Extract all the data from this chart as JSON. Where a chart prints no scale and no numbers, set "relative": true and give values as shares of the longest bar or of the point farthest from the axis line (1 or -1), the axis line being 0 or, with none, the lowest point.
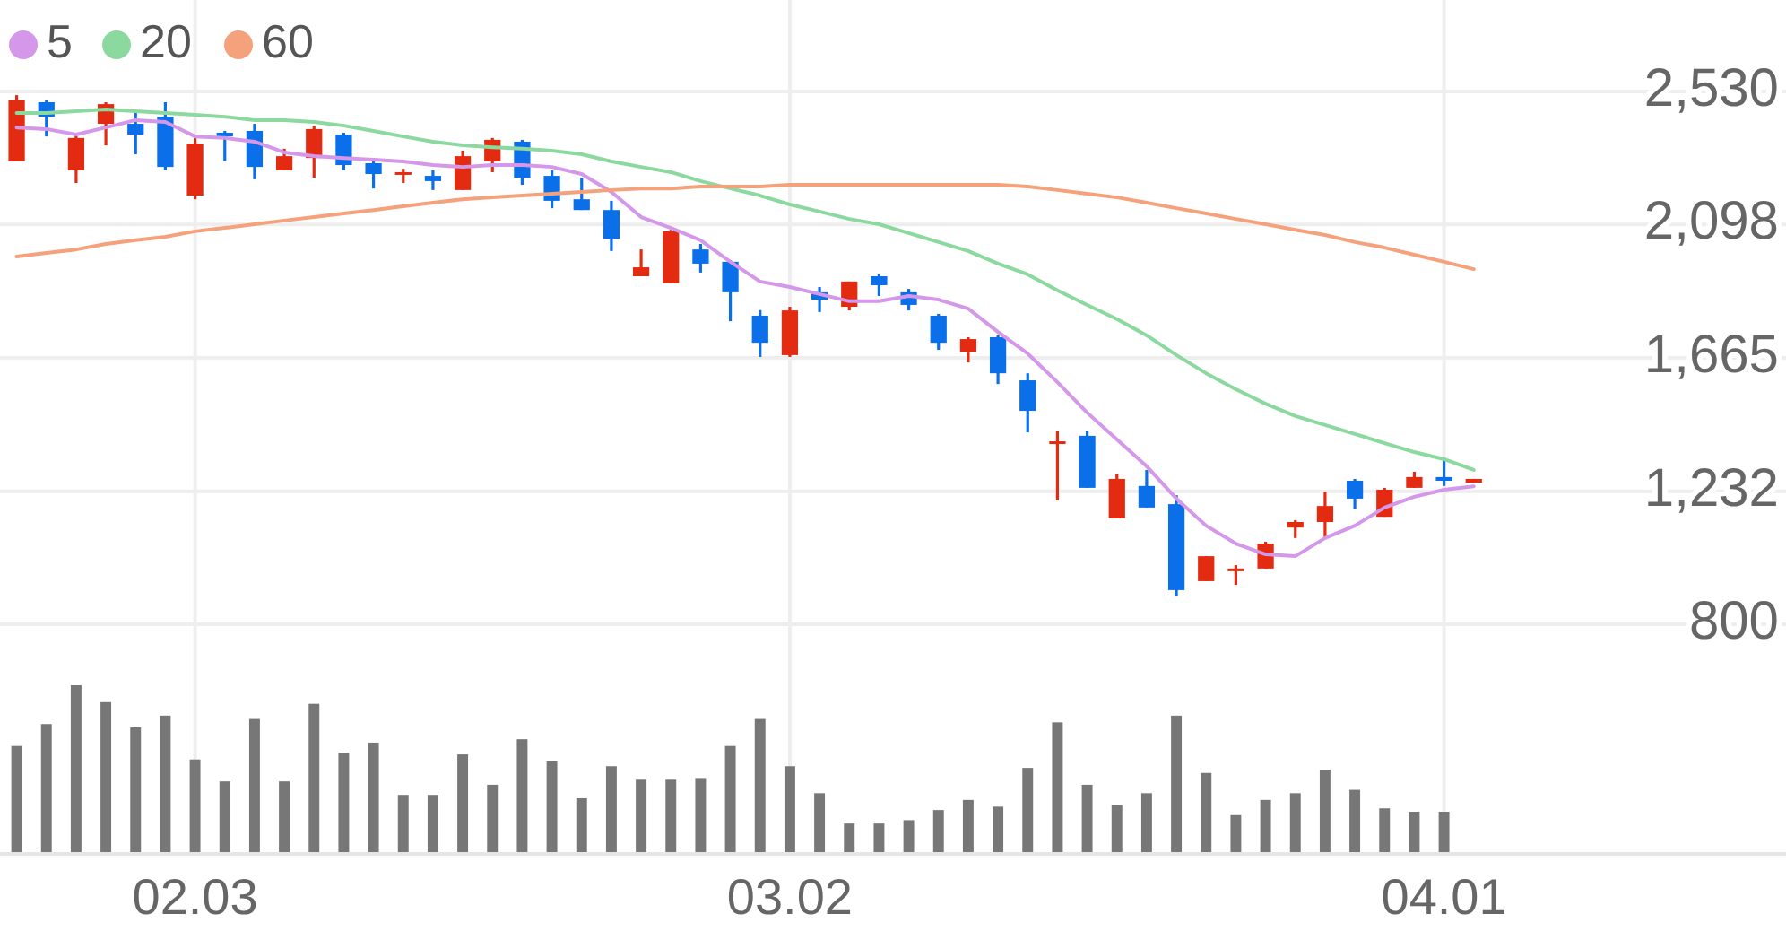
{
  "chart_data": [
    {
      "type": "candlestick",
      "categories": [
        null,
        null,
        null,
        null,
        null,
        null,
        "02.03",
        null,
        null,
        null,
        null,
        null,
        null,
        null,
        null,
        null,
        null,
        null,
        null,
        null,
        null,
        null,
        null,
        null,
        null,
        null,
        "03.02",
        null,
        null,
        null,
        null,
        null,
        null,
        null,
        null,
        null,
        null,
        null,
        null,
        null,
        null,
        null,
        null,
        null,
        null,
        null,
        null,
        null,
        "04.01",
        null,
        null,
        null,
        null,
        null,
        null,
        null,
        null,
        null,
        null,
        null
      ],
      "ohlc": [
        [
          2303,
          2518,
          2303,
          2501
        ],
        [
          2495,
          2501,
          2384,
          2448
        ],
        [
          2274,
          2390,
          2233,
          2379
        ],
        [
          2425,
          2495,
          2355,
          2489
        ],
        [
          2425,
          2460,
          2326,
          2390
        ],
        [
          2448,
          2495,
          2274,
          2285
        ],
        [
          2192,
          2379,
          2180,
          2361
        ],
        [
          2396,
          2402,
          2303,
          2384
        ],
        [
          2402,
          2425,
          2245,
          2285
        ],
        [
          2274,
          2344,
          2274,
          2320
        ],
        [
          2314,
          2419,
          2250,
          2408
        ],
        [
          2390,
          2396,
          2274,
          2291
        ],
        [
          2297,
          2314,
          2215,
          2262
        ],
        [
          2262,
          2279,
          2233,
          2268
        ],
        [
          2256,
          2274,
          2210,
          2239
        ],
        [
          2210,
          2338,
          2210,
          2320
        ],
        [
          2303,
          2379,
          2268,
          2373
        ],
        [
          2367,
          2373,
          2227,
          2250
        ],
        [
          2256,
          2274,
          2151,
          2175
        ],
        [
          2180,
          2250,
          2145,
          2145
        ],
        [
          2145,
          2175,
          2012,
          2052
        ],
        [
          1930,
          2017,
          1930,
          1959
        ],
        [
          1907,
          2081,
          1907,
          2076
        ],
        [
          2017,
          2035,
          1942,
          1971
        ],
        [
          1977,
          1982,
          1784,
          1878
        ],
        [
          1802,
          1820,
          1668,
          1714
        ],
        [
          1674,
          1831,
          1668,
          1819
        ],
        [
          1878,
          1895,
          1814,
          1854
        ],
        [
          1831,
          1913,
          1819,
          1913
        ],
        [
          1930,
          1936,
          1866,
          1901
        ],
        [
          1878,
          1889,
          1819,
          1837
        ],
        [
          1802,
          1808,
          1691,
          1714
        ],
        [
          1685,
          1732,
          1650,
          1726
        ],
        [
          1732,
          1738,
          1580,
          1615
        ],
        [
          1592,
          1615,
          1423,
          1493
        ],
        [
          1388,
          1429,
          1202,
          1394
        ],
        [
          1412,
          1429,
          1243,
          1243
        ],
        [
          1144,
          1289,
          1144,
          1272
        ],
        [
          1249,
          1301,
          1179,
          1179
        ],
        [
          1190,
          1219,
          893,
          911
        ],
        [
          940,
          1021,
          940,
          1021
        ],
        [
          975,
          992,
          928,
          981
        ],
        [
          981,
          1068,
          981,
          1062
        ],
        [
          1114,
          1138,
          1080,
          1132
        ],
        [
          1132,
          1231,
          1080,
          1184
        ],
        [
          1266,
          1272,
          1173,
          1208
        ],
        [
          1149,
          1243,
          1149,
          1237
        ],
        [
          1243,
          1295,
          1243,
          1278
        ],
        [
          1278,
          1342,
          1249,
          1266
        ],
        [
          1260,
          1272,
          1260,
          1272
        ],
        null,
        null,
        null,
        null,
        null,
        null,
        null,
        null,
        null,
        null
      ],
      "colors": [
        "#e32b12",
        "#0a6fe8",
        "#e32b12",
        "#e32b12",
        "#0a6fe8",
        "#0a6fe8",
        "#e32b12",
        "#0a6fe8",
        "#0a6fe8",
        "#e32b12",
        "#e32b12",
        "#0a6fe8",
        "#0a6fe8",
        "#e32b12",
        "#0a6fe8",
        "#e32b12",
        "#e32b12",
        "#0a6fe8",
        "#0a6fe8",
        "#0a6fe8",
        "#0a6fe8",
        "#e32b12",
        "#e32b12",
        "#0a6fe8",
        "#0a6fe8",
        "#0a6fe8",
        "#e32b12",
        "#0a6fe8",
        "#e32b12",
        "#0a6fe8",
        "#0a6fe8",
        "#0a6fe8",
        "#e32b12",
        "#0a6fe8",
        "#0a6fe8",
        "#e32b12",
        "#0a6fe8",
        "#e32b12",
        "#0a6fe8",
        "#0a6fe8",
        "#e32b12",
        "#e32b12",
        "#e32b12",
        "#e32b12",
        "#e32b12",
        "#0a6fe8",
        "#e32b12",
        "#e32b12",
        "#0a6fe8",
        "#e32b12",
        null,
        null,
        null,
        null,
        null,
        null,
        null,
        null,
        null,
        null
      ],
      "series": [
        {
          "type": "line",
          "name": "5",
          "color": "#d597e9",
          "values": [
            2413,
            2408,
            2390,
            2413,
            2437,
            2431,
            2384,
            2379,
            2367,
            2332,
            2320,
            2314,
            2309,
            2303,
            2291,
            2285,
            2291,
            2291,
            2285,
            2262,
            2204,
            2122,
            2087,
            2047,
            1977,
            1913,
            1895,
            1872,
            1849,
            1849,
            1866,
            1854,
            1825,
            1749,
            1679,
            1586,
            1487,
            1400,
            1313,
            1208,
            1120,
            1062,
            1027,
            1021,
            1080,
            1120,
            1179,
            1214,
            1237,
            1248,
            null,
            null,
            null,
            null,
            null,
            null,
            null,
            null,
            null,
            null
          ]
        },
        {
          "type": "line",
          "name": "20",
          "color": "#8cd9a0",
          "values": [
            2460,
            2460,
            2466,
            2472,
            2466,
            2460,
            2454,
            2448,
            2437,
            2437,
            2431,
            2419,
            2402,
            2384,
            2367,
            2355,
            2349,
            2344,
            2338,
            2326,
            2303,
            2285,
            2268,
            2239,
            2215,
            2192,
            2163,
            2140,
            2116,
            2099,
            2070,
            2041,
            2012,
            1971,
            1936,
            1884,
            1837,
            1791,
            1738,
            1674,
            1615,
            1563,
            1516,
            1476,
            1447,
            1418,
            1388,
            1359,
            1336,
            1301,
            null,
            null,
            null,
            null,
            null,
            null,
            null,
            null,
            null,
            null
          ]
        },
        {
          "type": "line",
          "name": "60",
          "color": "#f5a27c",
          "values": [
            1994,
            2006,
            2017,
            2035,
            2047,
            2058,
            2076,
            2087,
            2099,
            2111,
            2122,
            2134,
            2145,
            2157,
            2169,
            2180,
            2186,
            2192,
            2198,
            2204,
            2210,
            2215,
            2215,
            2221,
            2221,
            2221,
            2227,
            2227,
            2227,
            2227,
            2227,
            2227,
            2227,
            2227,
            2221,
            2210,
            2198,
            2186,
            2169,
            2151,
            2134,
            2116,
            2099,
            2081,
            2064,
            2041,
            2023,
            2000,
            1977,
            1953,
            null,
            null,
            null,
            null,
            null,
            null,
            null,
            null,
            null,
            null
          ]
        }
      ],
      "ylim": [
        800,
        2530
      ],
      "yticks": [
        {
          "value": 2530,
          "label": "2,530"
        },
        {
          "value": 2098,
          "label": "2,098"
        },
        {
          "value": 1665,
          "label": "1,665"
        },
        {
          "value": 1232,
          "label": "1,232"
        },
        800
      ],
      "grid": true,
      "legend": "top left",
      "tick_labels": "y"
    },
    {
      "type": "bar",
      "relative": true,
      "color": "#777777",
      "categories": [
        null,
        null,
        null,
        null,
        null,
        null,
        "02.03",
        null,
        null,
        null,
        null,
        null,
        null,
        null,
        null,
        null,
        null,
        null,
        null,
        null,
        null,
        null,
        null,
        null,
        null,
        null,
        "03.02",
        null,
        null,
        null,
        null,
        null,
        null,
        null,
        null,
        null,
        null,
        null,
        null,
        null,
        null,
        null,
        null,
        null,
        null,
        null,
        null,
        null,
        "04.01",
        null,
        null,
        null,
        null,
        null,
        null,
        null,
        null,
        null,
        null,
        null
      ],
      "values": [
        0.64,
        0.77,
        1,
        0.9,
        0.75,
        0.82,
        0.56,
        0.43,
        0.8,
        0.43,
        0.89,
        0.6,
        0.66,
        0.35,
        0.35,
        0.59,
        0.41,
        0.68,
        0.55,
        0.33,
        0.52,
        0.44,
        0.44,
        0.45,
        0.64,
        0.8,
        0.52,
        0.36,
        0.18,
        0.18,
        0.2,
        0.26,
        0.32,
        0.28,
        0.51,
        0.78,
        0.41,
        0.29,
        0.36,
        0.82,
        0.48,
        0.23,
        0.32,
        0.36,
        0.5,
        0.38,
        0.27,
        0.25,
        0.25,
        null,
        null,
        null,
        null,
        null,
        null,
        null,
        null,
        null,
        null,
        null
      ],
      "grid": "x",
      "tick_labels": "x"
    }
  ]
}
